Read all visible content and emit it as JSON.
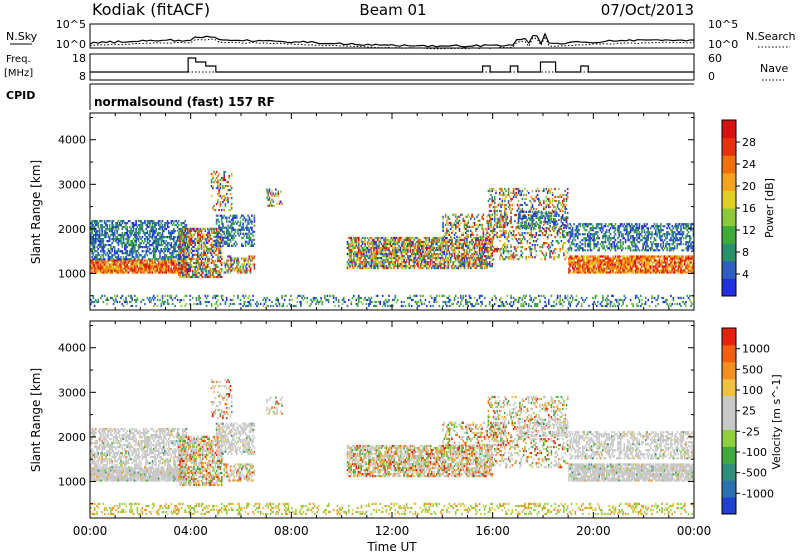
{
  "header": {
    "station": "Kodiak (fitACF)",
    "beam": "Beam 01",
    "date": "07/Oct/2013",
    "mode": "normalsound (fast) 157 RF"
  },
  "side_labels": {
    "nsky": "N.Sky",
    "nsearch": "N.Search",
    "freq": "Freq.",
    "freq_unit": "[MHz]",
    "nave": "Nave",
    "cpid": "CPID",
    "noise_top": "10^5",
    "noise_bottom": "10^0",
    "freq_top": "18",
    "freq_bottom": "8",
    "nave_top": "60",
    "nave_bottom": "0"
  },
  "chart_data": [
    {
      "type": "heatmap",
      "name": "power",
      "xlabel": "",
      "ylabel": "Slant Range [km]",
      "xlim": [
        0,
        24
      ],
      "ylim": [
        180,
        4600
      ],
      "yticks": [
        1000,
        2000,
        3000,
        4000
      ],
      "colorbar": {
        "label": "Power [dB]",
        "tick_labels": [
          "28",
          "24",
          "20",
          "16",
          "12",
          "8",
          "4"
        ],
        "colors": [
          "#2030e0",
          "#2e5fc0",
          "#2a8f6a",
          "#3faa3a",
          "#8cc83a",
          "#e0d020",
          "#f2a320",
          "#f07010",
          "#e83010",
          "#d81010"
        ]
      }
    },
    {
      "type": "heatmap",
      "name": "velocity",
      "xlabel": "Time UT",
      "ylabel": "Slant Range [km]",
      "xlim": [
        0,
        24
      ],
      "ylim": [
        180,
        4600
      ],
      "xtick_labels": [
        "00:00",
        "04:00",
        "08:00",
        "12:00",
        "16:00",
        "20:00",
        "00:00"
      ],
      "yticks": [
        1000,
        2000,
        3000,
        4000
      ],
      "colorbar": {
        "label": "Velocity [m s^-1]",
        "tick_labels": [
          "1000",
          "500",
          "100",
          "25",
          "-25",
          "-100",
          "-500",
          "-1000"
        ],
        "colors": [
          "#2040d0",
          "#2e6fb0",
          "#2f8f7a",
          "#3fa93f",
          "#8fd040",
          "#c8c8c8",
          "#c8c8c8",
          "#f0c040",
          "#f09020",
          "#f06010",
          "#e82010"
        ]
      }
    }
  ]
}
